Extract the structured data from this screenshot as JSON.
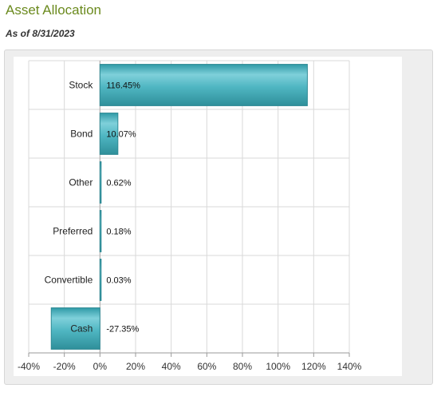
{
  "header": {
    "title": "Asset Allocation",
    "as_of": "As of 8/31/2023"
  },
  "colors": {
    "title": "#6b8a1e",
    "bar_fill": "#4fb6c2",
    "bar_stroke": "#2f8a95",
    "grid": "#d9d9d9",
    "plot_bg": "#ffffff",
    "panel_bg": "#eeeeee"
  },
  "chart_data": {
    "type": "bar",
    "orientation": "horizontal",
    "title": "",
    "xlabel": "",
    "ylabel": "",
    "categories": [
      "Stock",
      "Bond",
      "Other",
      "Preferred",
      "Convertible",
      "Cash"
    ],
    "values": [
      116.45,
      10.07,
      0.62,
      0.18,
      0.03,
      -27.35
    ],
    "value_labels": [
      "116.45%",
      "10.07%",
      "0.62%",
      "0.18%",
      "0.03%",
      "-27.35%"
    ],
    "xlim": [
      -40,
      140
    ],
    "x_ticks": [
      -40,
      -20,
      0,
      20,
      40,
      60,
      80,
      100,
      120,
      140
    ],
    "x_tick_labels": [
      "-40%",
      "-20%",
      "0%",
      "20%",
      "40%",
      "60%",
      "80%",
      "100%",
      "120%",
      "140%"
    ],
    "grid": true,
    "legend": "none"
  }
}
